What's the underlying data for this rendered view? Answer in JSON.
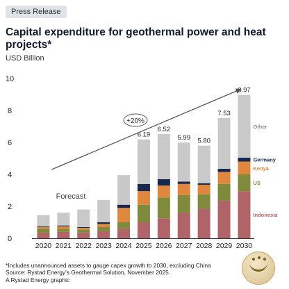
{
  "header": {
    "badge": "Press Release",
    "title": "Capital expenditure for geothermal power and heat projects*",
    "unit": "USD Billion"
  },
  "chart_data": {
    "type": "bar",
    "stacked": true,
    "categories": [
      "2020",
      "2021",
      "2022",
      "2023",
      "2024",
      "2025",
      "2026",
      "2027",
      "2028",
      "2029",
      "2030"
    ],
    "ylim": [
      0,
      10
    ],
    "yticks": [
      0,
      2,
      4,
      6,
      8,
      10
    ],
    "grid": false,
    "series": [
      {
        "name": "Indonesia",
        "color": "#b06468",
        "values": [
          0.35,
          0.4,
          0.35,
          0.45,
          0.6,
          1.0,
          1.25,
          1.6,
          1.85,
          2.35,
          2.95
        ]
      },
      {
        "name": "US",
        "color": "#7f8a3c",
        "values": [
          0.25,
          0.2,
          0.2,
          0.25,
          0.4,
          1.1,
          1.3,
          1.1,
          0.9,
          1.05,
          1.05
        ]
      },
      {
        "name": "Kenya",
        "color": "#e0873f",
        "values": [
          0.1,
          0.15,
          0.1,
          0.2,
          0.9,
          0.85,
          0.75,
          0.7,
          0.6,
          0.75,
          0.8
        ]
      },
      {
        "name": "Germany",
        "color": "#16284d",
        "values": [
          0.05,
          0.05,
          0.05,
          0.1,
          0.2,
          0.45,
          0.4,
          0.15,
          0.1,
          0.2,
          0.25
        ]
      },
      {
        "name": "Other",
        "color": "#c9c9c9",
        "values": [
          0.7,
          0.8,
          1.1,
          1.4,
          1.85,
          2.79,
          2.82,
          2.44,
          2.35,
          3.18,
          3.92
        ]
      }
    ],
    "totals_labels": {
      "2025": "6.19",
      "2026": "6.52",
      "2027": "5.99",
      "2028": "5.80",
      "2029": "7.53",
      "2030": "8.97"
    },
    "forecast_label": "Forecast",
    "growth_label": "+20%",
    "legend": "inline-right"
  },
  "footer": {
    "note": "*Includes unannounced assets to gauge capex growth to 2030, excluding China",
    "source": "Source: Rystad Energy's Geothermal Solution, November 2025",
    "credit": "A Rystad Energy graphic"
  }
}
